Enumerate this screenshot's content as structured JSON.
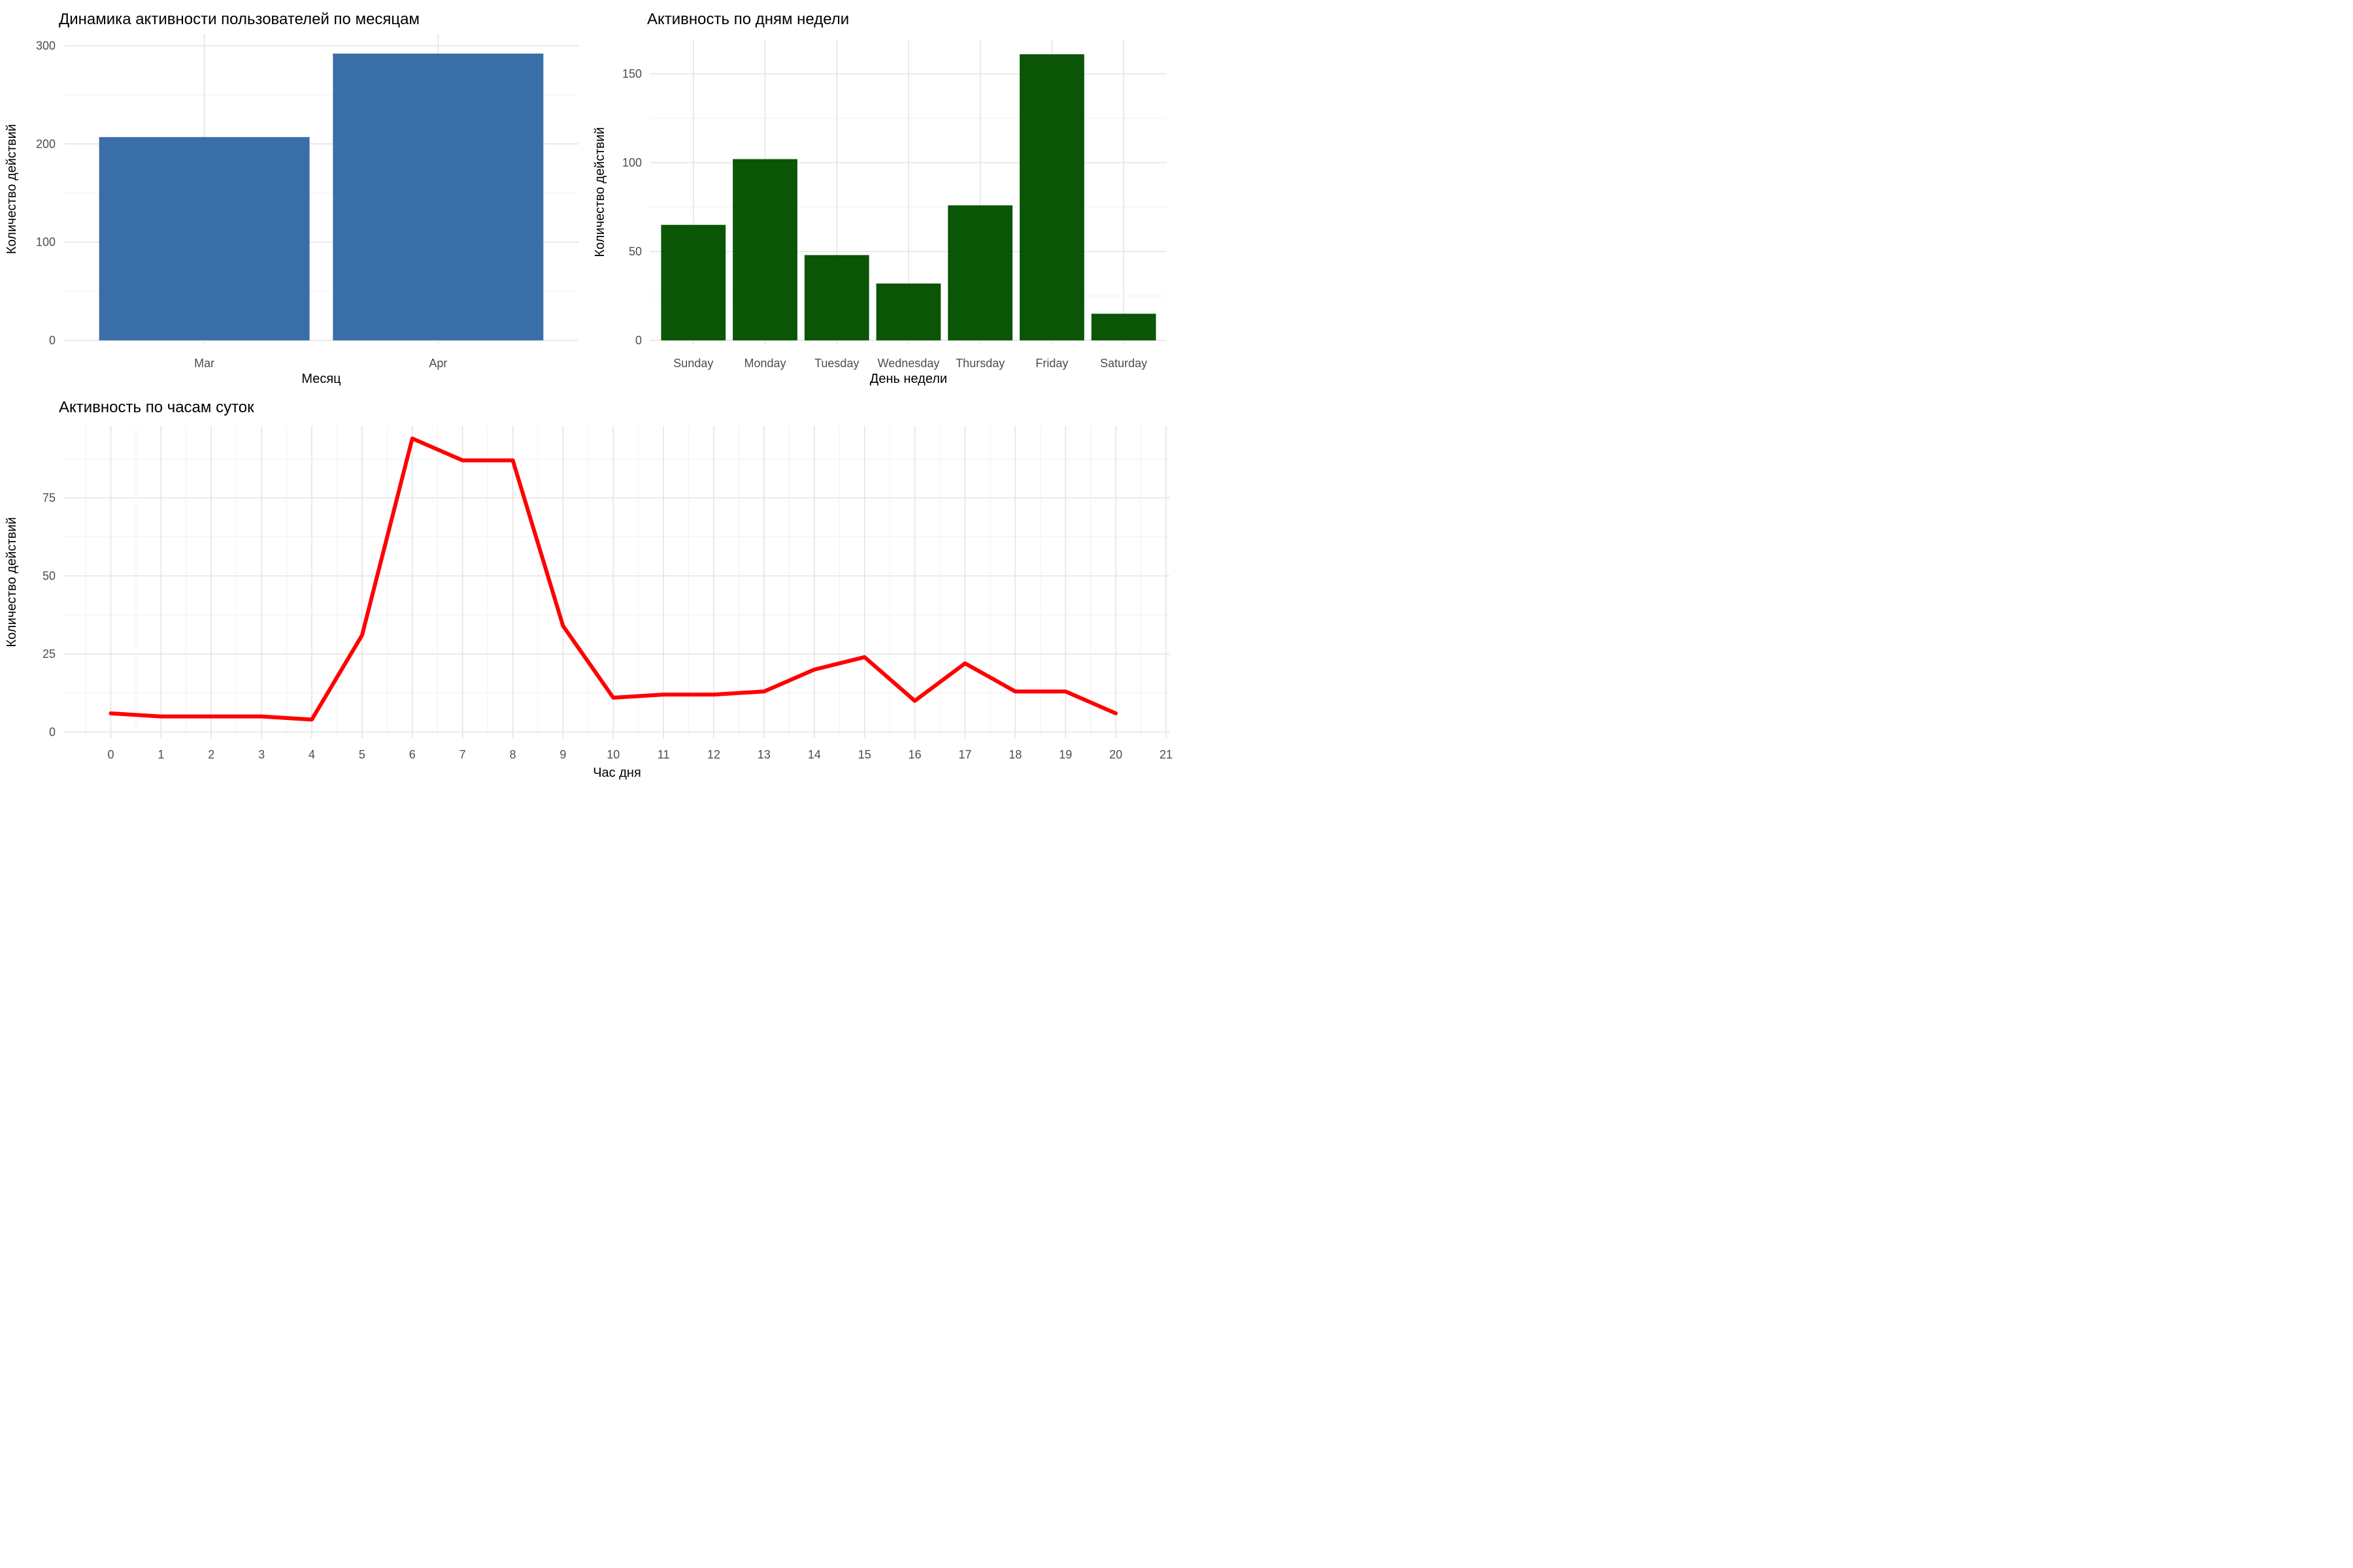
{
  "page": {
    "background": "#ffffff"
  },
  "chart_data": [
    {
      "type": "bar",
      "title": "Динамика активности пользователей по месяцам",
      "xlabel": "Месяц",
      "ylabel": "Количество действий",
      "categories": [
        "Mar",
        "Apr"
      ],
      "values": [
        207,
        292
      ],
      "bar_color": "#3A6EA8",
      "yticks": [
        0,
        100,
        200,
        300
      ],
      "yticks_minor": [
        50,
        150,
        250
      ],
      "ylim": [
        0,
        312
      ],
      "grid": "on",
      "legend": "none"
    },
    {
      "type": "bar",
      "title": "Активность по дням недели",
      "xlabel": "День недели",
      "ylabel": "Количество действий",
      "categories": [
        "Sunday",
        "Monday",
        "Tuesday",
        "Wednesday",
        "Thursday",
        "Friday",
        "Saturday"
      ],
      "values": [
        65,
        102,
        48,
        32,
        76,
        161,
        15
      ],
      "bar_color": "#0B5506",
      "yticks": [
        0,
        50,
        100,
        150
      ],
      "yticks_minor": [
        25,
        75,
        125
      ],
      "ylim": [
        0,
        169
      ],
      "grid": "on",
      "legend": "none"
    },
    {
      "type": "line",
      "title": "Активность по часам суток",
      "xlabel": "Час дня",
      "ylabel": "Количество действий",
      "x": [
        0,
        1,
        2,
        3,
        4,
        5,
        6,
        7,
        8,
        9,
        10,
        11,
        12,
        13,
        14,
        15,
        16,
        17,
        18,
        19,
        20
      ],
      "values": [
        6,
        5,
        5,
        5,
        4,
        31,
        94,
        87,
        87,
        34,
        11,
        12,
        12,
        13,
        20,
        24,
        10,
        22,
        13,
        13,
        6
      ],
      "xticks": [
        0,
        1,
        2,
        3,
        4,
        5,
        6,
        7,
        8,
        9,
        10,
        11,
        12,
        13,
        14,
        15,
        16,
        17,
        18,
        19,
        20,
        21
      ],
      "yticks": [
        0,
        25,
        50,
        75
      ],
      "yticks_minor": [
        12.5,
        37.5,
        62.5,
        87.5
      ],
      "line_color": "#FF0000",
      "ylim": [
        -2,
        98
      ],
      "xlim": [
        -0.93,
        21.07
      ],
      "grid": "on",
      "legend": "none"
    }
  ],
  "style": {
    "tick_label_color": "#4D4D4D",
    "axis_title_color": "#000000",
    "grid_major_color": "#E4E4E4",
    "grid_minor_color": "#F1F1F1"
  }
}
